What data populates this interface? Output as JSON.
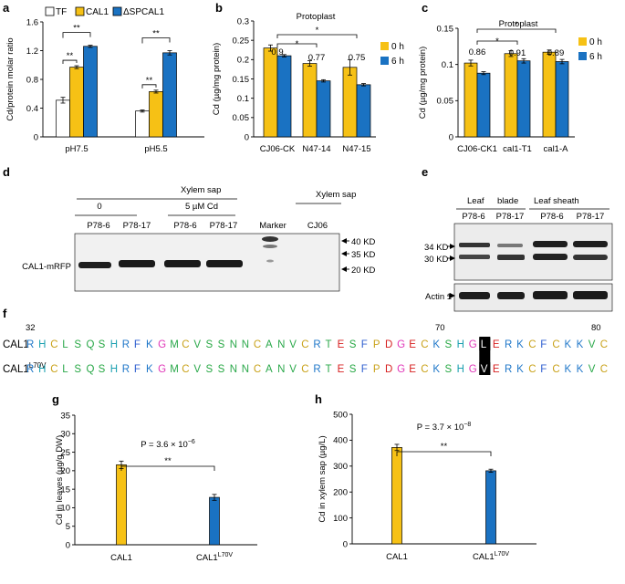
{
  "panels": {
    "a": "a",
    "b": "b",
    "c": "c",
    "d": "d",
    "e": "e",
    "f": "f",
    "g": "g",
    "h": "h"
  },
  "colors": {
    "TF": "#ffffff",
    "CAL1": "#f6c115",
    "dSPCAL1": "#1a72c2",
    "h0": "#f6c115",
    "h6": "#1a72c2",
    "seq_R": "#1f77c9",
    "seq_H": "#1ba0b0",
    "seq_C": "#c9a21a",
    "seq_L": "#2aa84a",
    "seq_S": "#27a844",
    "seq_Q": "#2aa84a",
    "seq_F": "#2f5fd0",
    "seq_K": "#1f77c9",
    "seq_G": "#e036b8",
    "seq_M": "#2aa84a",
    "seq_V": "#2aa84a",
    "seq_N": "#2aa84a",
    "seq_A": "#2aa84a",
    "seq_T": "#2aa84a",
    "seq_E": "#d62020",
    "seq_P": "#c9a21a",
    "seq_D": "#d62020"
  },
  "chart_data": [
    {
      "id": "a",
      "type": "bar",
      "ylabel": "Cd/protein molar ratio",
      "ylim": [
        0,
        1.6
      ],
      "yticks": [
        "0",
        "0.4",
        "0.8",
        "1.2",
        "1.6"
      ],
      "categories": [
        "pH7.5",
        "pH5.5"
      ],
      "series": [
        {
          "name": "TF",
          "values": [
            0.51,
            0.36
          ],
          "errors": [
            0.04,
            0.015
          ]
        },
        {
          "name": "CAL1",
          "values": [
            0.97,
            0.63
          ],
          "errors": [
            0.02,
            0.02
          ]
        },
        {
          "name": "ΔSPCAL1",
          "values": [
            1.26,
            1.17
          ],
          "errors": [
            0.015,
            0.03
          ]
        }
      ],
      "significance": [
        "**",
        "**",
        "**",
        "**"
      ]
    },
    {
      "id": "b",
      "type": "bar",
      "title": "Protoplast",
      "ylabel": "Cd (µg/mg protein)",
      "ylim": [
        0,
        0.3
      ],
      "yticks": [
        "0",
        "0.05",
        "0.1",
        "0.15",
        "0.2",
        "0.25",
        "0.3"
      ],
      "categories": [
        "CJ06-CK",
        "N47-14",
        "N47-15"
      ],
      "series": [
        {
          "name": "0 h",
          "values": [
            0.23,
            0.19,
            0.18
          ],
          "errors": [
            0.008,
            0.007,
            0.02
          ]
        },
        {
          "name": "6 h",
          "values": [
            0.21,
            0.145,
            0.135
          ],
          "errors": [
            0.003,
            0.003,
            0.003
          ]
        }
      ],
      "ratios": [
        "0.9",
        "0.77",
        "0.75"
      ],
      "significance": [
        "*",
        "*"
      ]
    },
    {
      "id": "c",
      "type": "bar",
      "title": "Protoplast",
      "ylabel": "Cd (µg/mg protein)",
      "ylim": [
        0,
        0.15
      ],
      "yticks": [
        "0",
        "0.05",
        "0.1",
        "0.15"
      ],
      "categories": [
        "CJ06-CK1",
        "cal1-T1",
        "cal1-A"
      ],
      "series": [
        {
          "name": "0 h",
          "values": [
            0.102,
            0.115,
            0.117
          ],
          "errors": [
            0.004,
            0.004,
            0.003
          ]
        },
        {
          "name": "6 h",
          "values": [
            0.088,
            0.105,
            0.104
          ],
          "errors": [
            0.002,
            0.003,
            0.003
          ]
        }
      ],
      "ratios": [
        "0.86",
        "0.91",
        "0.89"
      ],
      "significance": [
        "*",
        "*"
      ]
    },
    {
      "id": "g",
      "type": "bar",
      "ylabel": "Cd in leaves (µg/g DW)",
      "ylim": [
        0,
        35
      ],
      "yticks": [
        "0",
        "5",
        "10",
        "15",
        "20",
        "25",
        "30",
        "35"
      ],
      "categories": [
        "CAL1",
        "CAL1L70V"
      ],
      "values": [
        21.6,
        12.8
      ],
      "errors": [
        1.0,
        0.8
      ],
      "p_prefix": "P = 3.6 × 10",
      "p_exp": "−6",
      "significance": "**"
    },
    {
      "id": "h",
      "type": "bar",
      "ylabel": "Cd in xylem sap (µg/L)",
      "ylim": [
        0,
        500
      ],
      "yticks": [
        "0",
        "100",
        "200",
        "300",
        "400",
        "500"
      ],
      "categories": [
        "CAL1",
        "CAL1L70V"
      ],
      "values": [
        372,
        282
      ],
      "errors": [
        12,
        6
      ],
      "p_prefix": "P = 3.7 × 10",
      "p_exp": "−8",
      "significance": "**"
    }
  ],
  "legend_a": [
    "TF",
    "CAL1",
    "ΔSPCAL1"
  ],
  "legend_b": [
    "0 h",
    "6 h"
  ],
  "cat_g": [
    "CAL1",
    "CAL1"
  ],
  "cat_g_sup": "L70V",
  "blot_d": {
    "header": "Xylem sap",
    "header2": "Xylem sap",
    "cond0": "0",
    "cond5": "5 µM Cd",
    "lanes": [
      "P78-6",
      "P78-17",
      "P78-6",
      "P78-17",
      "Marker",
      "CJ06"
    ],
    "row_label": "CAL1-mRFP",
    "markers": [
      "40 KD",
      "35 KD",
      "20 KD"
    ]
  },
  "blot_e": {
    "group1": "Leaf",
    "group1b": "blade",
    "group2": "Leaf sheath",
    "lanes": [
      "P78-6",
      "P78-17",
      "P78-6",
      "P78-17"
    ],
    "markers": [
      "34 KD",
      "30 KD"
    ],
    "actin": "Actin 1"
  },
  "seq": {
    "start": "32",
    "mid": "70",
    "end": "80",
    "row1_label": "CAL1",
    "row2_label": "CAL1",
    "row2_sup": "L70V",
    "row1": "RHCLSQSHRFKGMCVSSNNCANVCRTESFPDGECKSHGLERKCFCKKVC",
    "row2": "RHCLSQSHRFKGMCVSSNNCANVCRTESFPDGECKSHGVERKCFCKKVC"
  }
}
